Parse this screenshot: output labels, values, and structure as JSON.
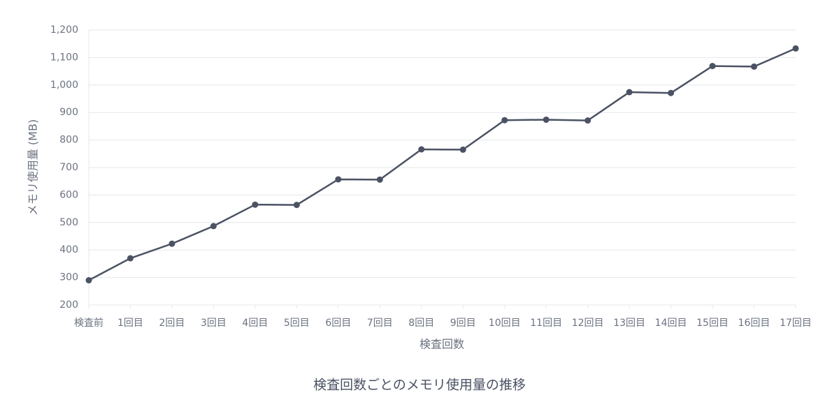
{
  "chart_data": {
    "type": "line",
    "title": "検査回数ごとのメモリ使用量の推移",
    "x_label": "検査回数",
    "y_label": "メモリ使用量 (MB)",
    "categories": [
      "検査前",
      "1回目",
      "2回目",
      "3回目",
      "4回目",
      "5回目",
      "6回目",
      "7回目",
      "8回目",
      "9回目",
      "10回目",
      "11回目",
      "12回目",
      "13回目",
      "14回目",
      "15回目",
      "16回目",
      "17回目"
    ],
    "series": [
      {
        "name": "メモリ使用量",
        "color": "#4b5263",
        "values": [
          290,
          370,
          423,
          487,
          565,
          564,
          657,
          656,
          766,
          765,
          872,
          874,
          871,
          974,
          971,
          1069,
          1067,
          1133
        ]
      }
    ],
    "ylim": [
      200,
      1200
    ],
    "yticks": [
      200,
      300,
      400,
      500,
      600,
      700,
      800,
      900,
      {
        "value": 1000,
        "label": "1,000"
      },
      {
        "value": 1100,
        "label": "1,100"
      },
      {
        "value": 1200,
        "label": "1,200"
      }
    ],
    "grid": true
  }
}
